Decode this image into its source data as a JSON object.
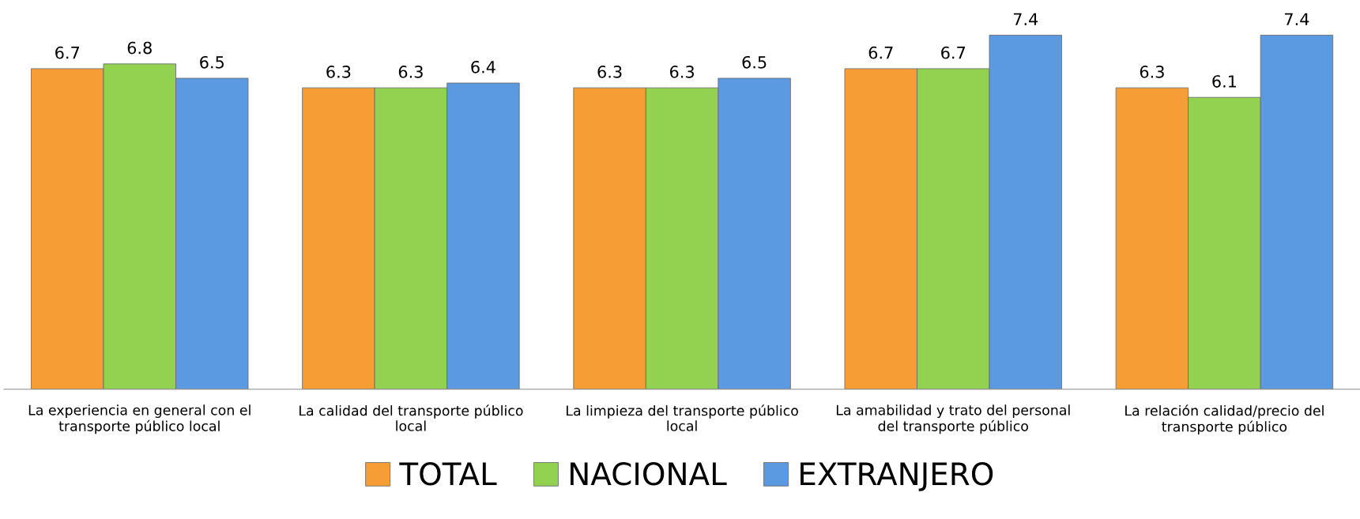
{
  "chart_data": {
    "type": "bar",
    "categories": [
      "La experiencia en general con el\ntransporte público local",
      "La calidad del transporte público\nlocal",
      "La limpieza del transporte público\nlocal",
      "La amabilidad y trato del personal\ndel transporte público",
      "La relación calidad/precio del\ntransporte público"
    ],
    "series": [
      {
        "name": "TOTAL",
        "color": "#f79d35",
        "values": [
          6.7,
          6.3,
          6.3,
          6.7,
          6.3
        ]
      },
      {
        "name": "NACIONAL",
        "color": "#93d150",
        "values": [
          6.8,
          6.3,
          6.3,
          6.7,
          6.1
        ]
      },
      {
        "name": "EXTRANJERO",
        "color": "#5b9ae0",
        "values": [
          6.5,
          6.4,
          6.5,
          7.4,
          7.4
        ]
      }
    ],
    "data_labels": true,
    "legend": "bottom",
    "grid": false,
    "tick_labels": "x"
  }
}
